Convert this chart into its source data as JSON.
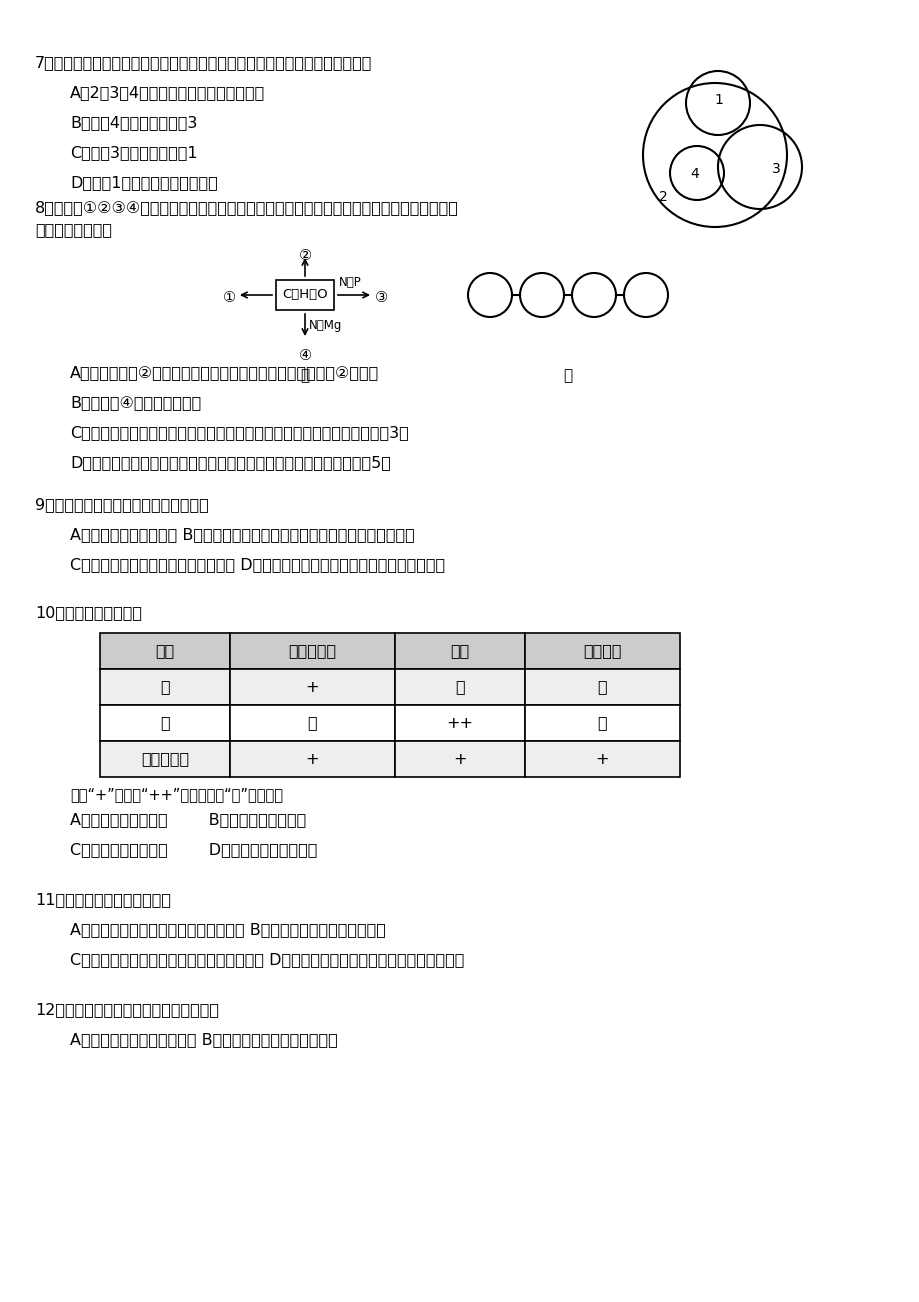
{
  "bg_color": "#ffffff",
  "text_color": "#000000",
  "q7_text": "7．下图所示的是酶、激素、蜗白质、抗体四者关系。下列有关叙述中正确的是",
  "q7_opts": [
    "A．2、3、4分别表示蜗白质、激素、抗体",
    "B．能产4的细胞一定能产3",
    "C．能产3的细胞一定能产1",
    "D．物质1都是由专门器官产生的"
  ],
  "q8_text1": "8．图甲中①②③④表示不同化学元素所组成的化合物，图乙表示由四个单体构成的化合物．以",
  "q8_text2": "下说法不正确的是",
  "q8_opts": [
    "A．若图甲中的②大量存在于皮下和内脏器官周围等部位，则②是脂肪",
    "B．图甲中④可以表示叶绿素",
    "C．图乙中若单体是氨基酸，则该化合物彻底水解后的产物中氧原子数增加3个",
    "D．图乙中若单体是四种脉氧核苷酸，则该化合物彻底水解后的产物有5种"
  ],
  "q9_text": "9．下列关于显微镜的使用叙述错误的是",
  "q9_opts": [
    "A．观察时视野越亮越好 B．高倍镜的使用要在低倍镜下找到目标的基础上进行",
    "C．高倍放大倍数增加了但视野变暗了 D．换上高倍物镜之后，只能用细准焦螺旋调节"
  ],
  "q10_text": "10．分析下表，可推测",
  "table_headers": [
    "溶液",
    "双缩脲试剂",
    "碗液",
    "斐林试剂"
  ],
  "table_rows": [
    [
      "甲",
      "+",
      "－",
      "－"
    ],
    [
      "乙",
      "－",
      "++",
      "－"
    ],
    [
      "甲、乙混合",
      "+",
      "+",
      "+"
    ]
  ],
  "q10_note": "注：“+”显色，“++”显色更深，“－”不显色。",
  "q10_opts": [
    "A．甲溶液含有淠粉酶        B．乙溶液含有还原糖",
    "C．混合溶液不含淠粉        D．混合溶液含有淠粉酶"
  ],
  "q11_text": "11．下列相关叙述不正确的是",
  "q11_opts": [
    "A．细胞膜的糖被在细胞间具有识别作用 B．细胞膜能控制物质进出细胞",
    "C．细胞膜内外两侧结合的蜗白质种类有差异 D．载体蜗白是嵌在细胞膜内外表面的蜗白质"
  ],
  "q12_text": "12．下列有关细胞膜的叙述中，正确的是",
  "q12_opts": [
    "A．细胞膜中蜗白质含量最多 B．细胞膜的功能特性是相对的"
  ],
  "diag_box_label": "C、H、O",
  "diag_up_label": "②",
  "diag_left_label": "①",
  "diag_right_label": "③",
  "diag_right_arrow_label": "N、P",
  "diag_down_label": "④",
  "diag_down_arrow_label": "N、Mg",
  "diag_jia_label": "甲",
  "diag_yi_label": "乙"
}
